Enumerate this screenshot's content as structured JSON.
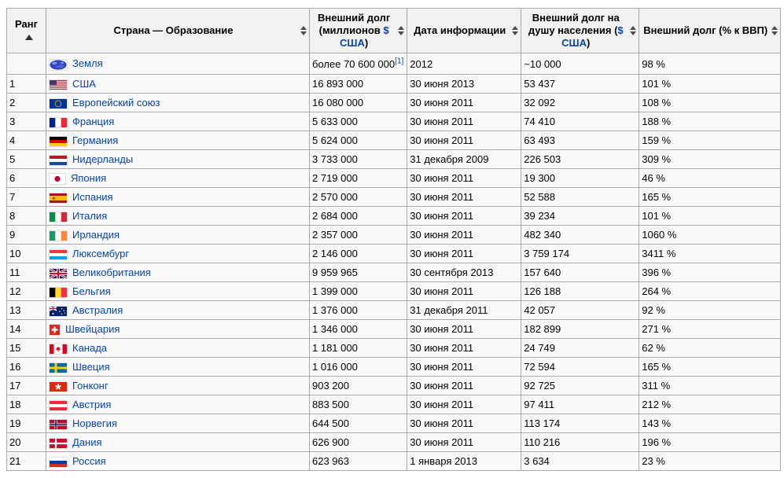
{
  "meta": {
    "description": "Sortable wikitable: external debt by country (Russian)",
    "link_color": "#0645ad",
    "header_bg": "#f2f2f2",
    "cell_bg": "#f9f9f9",
    "border_color": "#aaaaaa"
  },
  "table": {
    "columns": [
      {
        "id": "rank",
        "label": "Ранг",
        "sort": "asc",
        "sort_icon": "sort-ascending-icon"
      },
      {
        "id": "country",
        "label": "Страна — Образование",
        "sort": "both",
        "sort_icon": "sort-toggle-icon"
      },
      {
        "id": "debt",
        "label": "Внешний долг (миллионов ",
        "link": "$ США",
        "after": ")",
        "sort": "both",
        "sort_icon": "sort-toggle-icon"
      },
      {
        "id": "date",
        "label": "Дата информации",
        "sort": "both",
        "sort_icon": "sort-toggle-icon"
      },
      {
        "id": "capita",
        "label": "Внешний долг на душу населения (",
        "link": "$ США",
        "after": ")",
        "sort": "both",
        "sort_icon": "sort-toggle-icon"
      },
      {
        "id": "gdp",
        "label": "Внешний долг (% к ВВП)",
        "sort": "both",
        "sort_icon": "sort-toggle-icon"
      }
    ],
    "rows": [
      {
        "rank": "",
        "flag": "earth",
        "country": "Земля",
        "debt": "более 70 600 000",
        "ref": "[1]",
        "date": "2012",
        "capita": "~10 000",
        "gdp": "98 %"
      },
      {
        "rank": "1",
        "flag": "us",
        "country": "США",
        "debt": "16 893 000",
        "date": "30 июня 2013",
        "capita": "53 437",
        "gdp": "101 %"
      },
      {
        "rank": "2",
        "flag": "eu",
        "country": "Европейский союз",
        "debt": "16 080 000",
        "date": "30 июня 2011",
        "capita": "32 092",
        "gdp": "108 %"
      },
      {
        "rank": "3",
        "flag": "fr",
        "country": "Франция",
        "debt": "5 633 000",
        "date": "30 июня 2011",
        "capita": "74 410",
        "gdp": "188 %"
      },
      {
        "rank": "4",
        "flag": "de",
        "country": "Германия",
        "debt": "5 624 000",
        "date": "30 июня 2011",
        "capita": "63 493",
        "gdp": "159 %"
      },
      {
        "rank": "5",
        "flag": "nl",
        "country": "Нидерланды",
        "debt": "3 733 000",
        "date": "31 декабря 2009",
        "capita": "226 503",
        "gdp": "309 %"
      },
      {
        "rank": "6",
        "flag": "jp",
        "country": "Япония",
        "debt": "2 719 000",
        "date": "30 июня 2011",
        "capita": "19 300",
        "gdp": "46 %"
      },
      {
        "rank": "7",
        "flag": "es",
        "country": "Испания",
        "debt": "2 570 000",
        "date": "30 июня 2011",
        "capita": "52 588",
        "gdp": "165 %"
      },
      {
        "rank": "8",
        "flag": "it",
        "country": "Италия",
        "debt": "2 684 000",
        "date": "30 июня 2011",
        "capita": "39 234",
        "gdp": "101 %"
      },
      {
        "rank": "9",
        "flag": "ie",
        "country": "Ирландия",
        "debt": "2 357 000",
        "date": "30 июня 2011",
        "capita": "482 340",
        "gdp": "1060 %"
      },
      {
        "rank": "10",
        "flag": "lu",
        "country": "Люксембург",
        "debt": "2 146 000",
        "date": "30 июня 2011",
        "capita": "3 759 174",
        "gdp": "3411 %"
      },
      {
        "rank": "11",
        "flag": "gb",
        "country": "Великобритания",
        "debt": "9 959 965",
        "date": "30 сентября 2013",
        "capita": "157 640",
        "gdp": "396 %"
      },
      {
        "rank": "12",
        "flag": "be",
        "country": "Бельгия",
        "debt": "1 399 000",
        "date": "30 июня 2011",
        "capita": "126 188",
        "gdp": "264 %"
      },
      {
        "rank": "13",
        "flag": "au",
        "country": "Австралия",
        "debt": "1 376 000",
        "date": "31 декабря 2011",
        "capita": "42 057",
        "gdp": "92 %"
      },
      {
        "rank": "14",
        "flag": "ch",
        "country": "Швейцария",
        "debt": "1 346 000",
        "date": "30 июня 2011",
        "capita": "182 899",
        "gdp": "271 %"
      },
      {
        "rank": "15",
        "flag": "ca",
        "country": "Канада",
        "debt": "1 181 000",
        "date": "30 июня 2011",
        "capita": "24 749",
        "gdp": "62 %"
      },
      {
        "rank": "16",
        "flag": "se",
        "country": "Швеция",
        "debt": "1 016 000",
        "date": "30 июня 2011",
        "capita": "72 594",
        "gdp": "165 %"
      },
      {
        "rank": "17",
        "flag": "hk",
        "country": "Гонконг",
        "debt": "903 200",
        "date": "30 июня 2011",
        "capita": "92 725",
        "gdp": "311 %"
      },
      {
        "rank": "18",
        "flag": "at",
        "country": "Австрия",
        "debt": "883 500",
        "date": "30 июня 2011",
        "capita": "97 411",
        "gdp": "212 %"
      },
      {
        "rank": "19",
        "flag": "no",
        "country": "Норвегия",
        "debt": "644 500",
        "date": "30 июня 2011",
        "capita": "113 174",
        "gdp": "143 %"
      },
      {
        "rank": "20",
        "flag": "dk",
        "country": "Дания",
        "debt": "626 900",
        "date": "30 июня 2011",
        "capita": "110 216",
        "gdp": "196 %"
      },
      {
        "rank": "21",
        "flag": "ru",
        "country": "Россия",
        "debt": "623 963",
        "date": "1 января 2013",
        "capita": "3 634",
        "gdp": "23 %"
      }
    ]
  }
}
